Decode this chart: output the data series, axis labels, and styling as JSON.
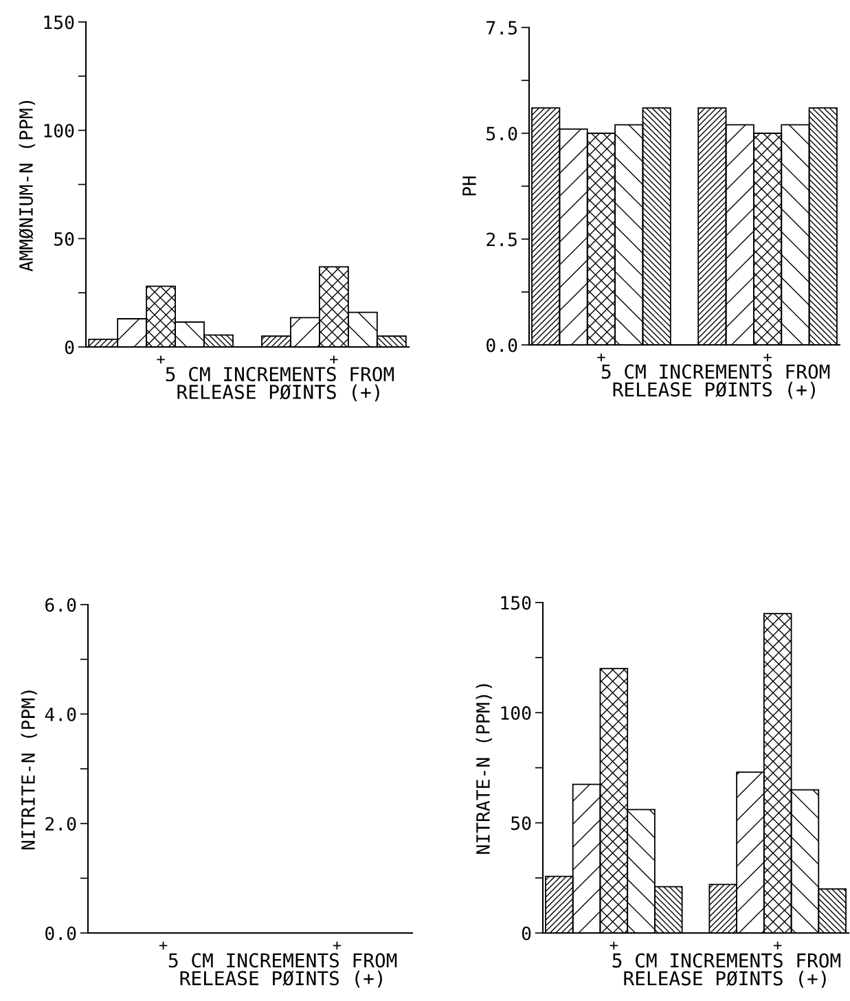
{
  "chart_data": [
    {
      "type": "bar",
      "categories": [
        null,
        null,
        "+",
        null,
        null,
        null,
        null,
        null,
        "+",
        null,
        null
      ],
      "values": [
        3.5,
        13,
        28,
        11.5,
        5.5,
        null,
        5,
        13.5,
        37,
        16,
        5
      ],
      "color": "#000000",
      "xlabel": "5 CM INCREMENTS FROM\nRELEASE PØINTS (+)",
      "ylabel": "AMMØNIUM-N (PPM)",
      "ylim": [
        0,
        150
      ],
      "yticks": [
        0,
        {
          "value": 25,
          "label": null
        },
        50,
        {
          "value": 75,
          "label": null
        },
        100,
        {
          "value": 125,
          "label": null
        },
        150
      ],
      "grid": false,
      "legend": false
    },
    {
      "type": "bar",
      "categories": [
        null,
        null,
        "+",
        null,
        null,
        null,
        null,
        null,
        "+",
        null,
        null
      ],
      "values": [
        5.6,
        5.1,
        5.0,
        5.2,
        5.6,
        null,
        5.6,
        5.2,
        5.0,
        5.2,
        5.6
      ],
      "color": "#000000",
      "xlabel": "5 CM INCREMENTS FROM\nRELEASE PØINTS (+)",
      "ylabel": "PH",
      "ylim": [
        0,
        7.5
      ],
      "yticks": [
        {
          "value": 0,
          "label": "0.0"
        },
        {
          "value": 1.25,
          "label": null
        },
        2.5,
        {
          "value": 3.75,
          "label": null
        },
        {
          "value": 5,
          "label": "5.0"
        },
        {
          "value": 6.25,
          "label": null
        },
        7.5
      ],
      "grid": false,
      "legend": false
    },
    {
      "type": "bar",
      "categories": [
        null,
        null,
        "+",
        null,
        null,
        null,
        null,
        null,
        "+",
        null,
        null
      ],
      "values": [
        0,
        0,
        0,
        0,
        0,
        null,
        0,
        0,
        0,
        0,
        0
      ],
      "color": "#000000",
      "xlabel": "5 CM INCREMENTS FROM\nRELEASE PØINTS (+)",
      "ylabel": "NITRITE-N (PPM)",
      "ylim": [
        0,
        6
      ],
      "yticks": [
        {
          "value": 0,
          "label": "0.0"
        },
        {
          "value": 1,
          "label": null
        },
        {
          "value": 2,
          "label": "2.0"
        },
        {
          "value": 3,
          "label": null
        },
        {
          "value": 4,
          "label": "4.0"
        },
        {
          "value": 5,
          "label": null
        },
        {
          "value": 6,
          "label": "6.0"
        }
      ],
      "grid": false,
      "legend": false
    },
    {
      "type": "bar",
      "categories": [
        null,
        null,
        "+",
        null,
        null,
        null,
        null,
        null,
        "+",
        null,
        null
      ],
      "values": [
        25.7,
        67.5,
        120,
        56,
        21,
        null,
        22,
        73,
        145,
        65,
        20
      ],
      "color": "#000000",
      "xlabel": "5 CM INCREMENTS FROM\nRELEASE PØINTS (+)",
      "ylabel": "NITRATE-N (PPM))",
      "ylim": [
        0,
        150
      ],
      "yticks": [
        0,
        {
          "value": 25,
          "label": null
        },
        50,
        {
          "value": 75,
          "label": null
        },
        100,
        {
          "value": 125,
          "label": null
        },
        150
      ],
      "grid": false,
      "legend": false
    }
  ]
}
